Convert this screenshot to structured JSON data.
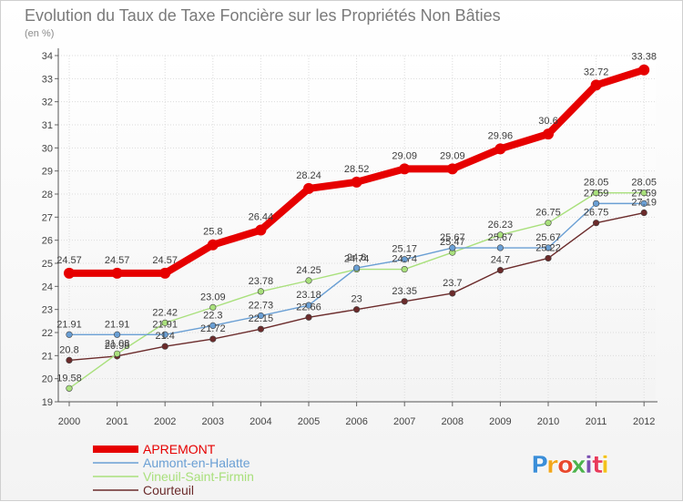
{
  "chart_data": {
    "type": "line",
    "title": "Evolution du Taux de Taxe Foncière sur les Propriétés Non Bâties",
    "subtitle": "(en %)",
    "xlabel": "",
    "ylabel": "",
    "categories": [
      "2000",
      "2001",
      "2002",
      "2003",
      "2004",
      "2005",
      "2006",
      "2007",
      "2008",
      "2009",
      "2010",
      "2011",
      "2012"
    ],
    "ylim": [
      19,
      34
    ],
    "yticks": [
      "19",
      "20",
      "21",
      "22",
      "23",
      "24",
      "25",
      "26",
      "27",
      "28",
      "29",
      "30",
      "31",
      "32",
      "33",
      "34"
    ],
    "grid": true,
    "legend_position": "bottom-left",
    "series": [
      {
        "name": "APREMONT",
        "color": "#e60000",
        "values": [
          24.57,
          24.57,
          24.57,
          25.8,
          26.44,
          28.24,
          28.52,
          29.09,
          29.09,
          29.96,
          30.6,
          32.72,
          33.38
        ],
        "labels": [
          "24.57",
          "24.57",
          "24.57",
          "25.8",
          "26.44",
          "28.24",
          "28.52",
          "29.09",
          "29.09",
          "29.96",
          "30.6",
          "32.72",
          "33.38"
        ]
      },
      {
        "name": "Aumont-en-Halatte",
        "color": "#6a9fd4",
        "values": [
          21.91,
          21.91,
          21.91,
          22.3,
          22.73,
          23.18,
          24.8,
          25.17,
          25.67,
          25.67,
          25.67,
          27.59,
          27.59
        ],
        "labels": [
          "21.91",
          "21.91",
          "21.91",
          "22.3",
          "22.73",
          "23.18",
          "24.8",
          "25.17",
          "25.67",
          "25.67",
          "25.67",
          "27.59",
          "27.59"
        ]
      },
      {
        "name": "Vineuil-Saint-Firmin",
        "color": "#a9e07c",
        "values": [
          19.58,
          21.08,
          22.42,
          23.09,
          23.78,
          24.25,
          24.74,
          24.74,
          25.47,
          26.23,
          26.75,
          28.05,
          28.05
        ],
        "labels": [
          "19.58",
          "21.08",
          "22.42",
          "23.09",
          "23.78",
          "24.25",
          "24.74",
          "24.74",
          "25.47",
          "26.23",
          "26.75",
          "28.05",
          "28.05"
        ]
      },
      {
        "name": "Courteuil",
        "color": "#6b2b2b",
        "values": [
          20.8,
          20.98,
          21.4,
          21.72,
          22.15,
          22.66,
          23,
          23.35,
          23.7,
          24.7,
          25.22,
          26.75,
          27.19
        ],
        "labels": [
          "20.8",
          "20.98",
          "21.4",
          "21.72",
          "22.15",
          "22.66",
          "23",
          "23.35",
          "23.7",
          "24.7",
          "25.22",
          "26.75",
          "27.19"
        ]
      }
    ]
  },
  "branding": {
    "letters": [
      "P",
      "r",
      "o",
      "x",
      "i",
      "t",
      "i"
    ],
    "colors": [
      "#3b8ed8",
      "#f2a61b",
      "#e8482c",
      "#4db34d",
      "#7a4fb0",
      "#e83a5a",
      "#f2c21b"
    ]
  }
}
